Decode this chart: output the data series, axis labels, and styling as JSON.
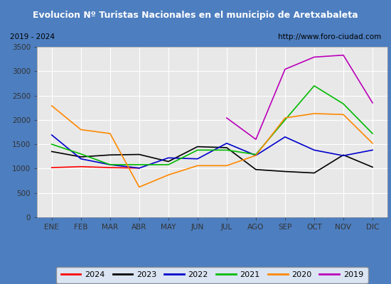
{
  "title": "Evolucion Nº Turistas Nacionales en el municipio de Aretxabaleta",
  "subtitle_left": "2019 - 2024",
  "subtitle_right": "http://www.foro-ciudad.com",
  "title_bg_color": "#4d7ebf",
  "title_text_color": "#ffffff",
  "subtitle_bg_color": "#e8e8e8",
  "subtitle_text_color": "#000000",
  "plot_bg_color": "#e8e8e8",
  "months": [
    "ENE",
    "FEB",
    "MAR",
    "ABR",
    "MAY",
    "JUN",
    "JUL",
    "AGO",
    "SEP",
    "OCT",
    "NOV",
    "DIC"
  ],
  "ylim": [
    0,
    3500
  ],
  "yticks": [
    0,
    500,
    1000,
    1500,
    2000,
    2500,
    3000,
    3500
  ],
  "series": {
    "2024": {
      "color": "#ff0000",
      "data": [
        1020,
        1040,
        1020,
        1010,
        null,
        null,
        null,
        null,
        null,
        null,
        null,
        null
      ]
    },
    "2023": {
      "color": "#000000",
      "data": [
        1350,
        1240,
        1280,
        1290,
        1145,
        1450,
        1430,
        980,
        940,
        910,
        1280,
        1030
      ]
    },
    "2022": {
      "color": "#0000cc",
      "data": [
        1690,
        1200,
        1080,
        1010,
        1220,
        1200,
        1520,
        1270,
        1650,
        1380,
        1265,
        1380
      ]
    },
    "2021": {
      "color": "#00bb00",
      "data": [
        1500,
        1300,
        1080,
        1080,
        1080,
        1380,
        1380,
        1290,
        2000,
        2700,
        2330,
        1720
      ]
    },
    "2020": {
      "color": "#ff8800",
      "data": [
        2290,
        1800,
        1720,
        620,
        870,
        1060,
        1060,
        1270,
        2040,
        2130,
        2110,
        1520
      ]
    },
    "2019": {
      "color": "#bb00bb",
      "data": [
        null,
        null,
        null,
        null,
        null,
        null,
        2040,
        1600,
        3040,
        3290,
        3330,
        2350
      ]
    }
  },
  "legend_order": [
    "2024",
    "2023",
    "2022",
    "2021",
    "2020",
    "2019"
  ],
  "grid_color": "#ffffff",
  "outer_bg_color": "#4d7ebf",
  "border_inner_color": "#4d7ebf"
}
